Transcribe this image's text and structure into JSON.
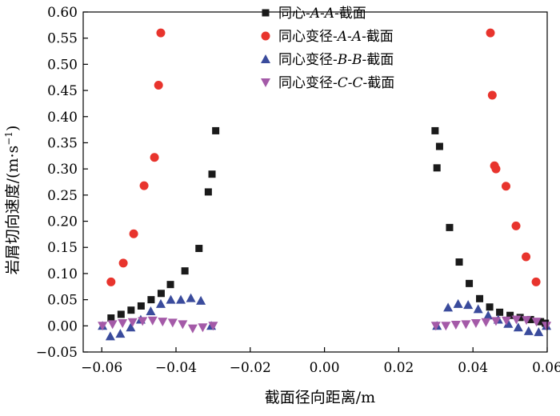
{
  "chart_data": {
    "type": "scatter",
    "xlabel": "截面径向距离/m",
    "ylabel_main": "岩屑切向速度/",
    "ylabel_unit": "(m·s",
    "ylabel_sup": "−1",
    "ylabel_close": ")",
    "xlim": [
      -0.065,
      0.06
    ],
    "ylim": [
      -0.05,
      0.6
    ],
    "xticks": [
      -0.06,
      -0.04,
      -0.02,
      0.0,
      0.02,
      0.04,
      0.06
    ],
    "xtick_labels": [
      "−0.06",
      "−0.04",
      "−0.02",
      "0.00",
      "0.02",
      "0.04",
      "0.06"
    ],
    "yticks": [
      -0.05,
      0.0,
      0.05,
      0.1,
      0.15,
      0.2,
      0.25,
      0.3,
      0.35,
      0.4,
      0.45,
      0.5,
      0.55,
      0.6
    ],
    "ytick_labels": [
      "−0.05",
      "0.00",
      "0.05",
      "0.10",
      "0.15",
      "0.20",
      "0.25",
      "0.30",
      "0.35",
      "0.40",
      "0.45",
      "0.50",
      "0.55",
      "0.60"
    ],
    "grid": false,
    "legend_position": "top-center",
    "series": [
      {
        "name": "同心-A-A-截面",
        "legend_parts": [
          {
            "text": "同心-",
            "italic": false
          },
          {
            "text": "A",
            "italic": true
          },
          {
            "text": "-",
            "italic": false
          },
          {
            "text": "A",
            "italic": true
          },
          {
            "text": "-截面",
            "italic": false
          }
        ],
        "marker": "square",
        "color": "#1a1a1a",
        "points": [
          [
            -0.0575,
            0.015
          ],
          [
            -0.0548,
            0.022
          ],
          [
            -0.0521,
            0.03
          ],
          [
            -0.0494,
            0.038
          ],
          [
            -0.0467,
            0.05
          ],
          [
            -0.044,
            0.062
          ],
          [
            -0.0415,
            0.079
          ],
          [
            -0.0376,
            0.105
          ],
          [
            -0.0338,
            0.148
          ],
          [
            -0.0313,
            0.256
          ],
          [
            -0.0303,
            0.29
          ],
          [
            -0.0293,
            0.373
          ],
          [
            0.0298,
            0.373
          ],
          [
            0.0303,
            0.302
          ],
          [
            0.031,
            0.343
          ],
          [
            0.0337,
            0.188
          ],
          [
            0.0363,
            0.122
          ],
          [
            0.039,
            0.081
          ],
          [
            0.0418,
            0.052
          ],
          [
            0.0445,
            0.036
          ],
          [
            0.0472,
            0.026
          ],
          [
            0.05,
            0.02
          ],
          [
            0.0527,
            0.016
          ],
          [
            0.0555,
            0.012
          ],
          [
            0.0582,
            0.008
          ],
          [
            0.0595,
            0.005
          ]
        ]
      },
      {
        "name": "同心变径-A-A-截面",
        "legend_parts": [
          {
            "text": "同心变径-",
            "italic": false
          },
          {
            "text": "A",
            "italic": true
          },
          {
            "text": "-",
            "italic": false
          },
          {
            "text": "A",
            "italic": true
          },
          {
            "text": "-截面",
            "italic": false
          }
        ],
        "marker": "circle",
        "color": "#e8342d",
        "points": [
          [
            -0.0575,
            0.084
          ],
          [
            -0.0542,
            0.12
          ],
          [
            -0.0514,
            0.176
          ],
          [
            -0.0486,
            0.268
          ],
          [
            -0.0458,
            0.322
          ],
          [
            -0.0447,
            0.46
          ],
          [
            -0.0441,
            0.56
          ],
          [
            0.0447,
            0.56
          ],
          [
            0.0452,
            0.441
          ],
          [
            0.0458,
            0.306
          ],
          [
            0.0462,
            0.3
          ],
          [
            0.0489,
            0.267
          ],
          [
            0.0516,
            0.191
          ],
          [
            0.0543,
            0.132
          ],
          [
            0.057,
            0.084
          ]
        ]
      },
      {
        "name": "同心变径-B-B-截面",
        "legend_parts": [
          {
            "text": "同心变径-",
            "italic": false
          },
          {
            "text": "B",
            "italic": true
          },
          {
            "text": "-",
            "italic": false
          },
          {
            "text": "B",
            "italic": true
          },
          {
            "text": "-截面",
            "italic": false
          }
        ],
        "marker": "triangle-up",
        "color": "#3a4b9c",
        "points": [
          [
            -0.0598,
            0.0
          ],
          [
            -0.0577,
            -0.02
          ],
          [
            -0.055,
            -0.015
          ],
          [
            -0.0522,
            -0.003
          ],
          [
            -0.0495,
            0.012
          ],
          [
            -0.0468,
            0.028
          ],
          [
            -0.0441,
            0.042
          ],
          [
            -0.0414,
            0.05
          ],
          [
            -0.0387,
            0.05
          ],
          [
            -0.036,
            0.053
          ],
          [
            -0.0333,
            0.048
          ],
          [
            -0.0305,
            0.0
          ],
          [
            0.0303,
            0.0
          ],
          [
            0.0333,
            0.035
          ],
          [
            0.036,
            0.042
          ],
          [
            0.0387,
            0.04
          ],
          [
            0.0414,
            0.032
          ],
          [
            0.0441,
            0.02
          ],
          [
            0.0468,
            0.012
          ],
          [
            0.0495,
            0.004
          ],
          [
            0.0522,
            -0.003
          ],
          [
            0.055,
            -0.01
          ],
          [
            0.0577,
            -0.012
          ],
          [
            0.0598,
            0.0
          ]
        ]
      },
      {
        "name": "同心变径-C-C-截面",
        "legend_parts": [
          {
            "text": "同心变径-",
            "italic": false
          },
          {
            "text": "C",
            "italic": true
          },
          {
            "text": "-",
            "italic": false
          },
          {
            "text": "C",
            "italic": true
          },
          {
            "text": "-截面",
            "italic": false
          }
        ],
        "marker": "triangle-down",
        "color": "#a45aa8",
        "points": [
          [
            -0.0598,
            0.0
          ],
          [
            -0.0571,
            0.003
          ],
          [
            -0.0544,
            0.005
          ],
          [
            -0.0517,
            0.007
          ],
          [
            -0.049,
            0.009
          ],
          [
            -0.0463,
            0.01
          ],
          [
            -0.0436,
            0.008
          ],
          [
            -0.0409,
            0.006
          ],
          [
            -0.0382,
            0.003
          ],
          [
            -0.0355,
            -0.005
          ],
          [
            -0.0328,
            -0.003
          ],
          [
            -0.03,
            0.0
          ],
          [
            0.03,
            0.0
          ],
          [
            0.0327,
            0.0
          ],
          [
            0.0354,
            0.002
          ],
          [
            0.0381,
            0.003
          ],
          [
            0.0408,
            0.005
          ],
          [
            0.0435,
            0.007
          ],
          [
            0.0462,
            0.009
          ],
          [
            0.049,
            0.01
          ],
          [
            0.0517,
            0.012
          ],
          [
            0.0544,
            0.011
          ],
          [
            0.0571,
            0.008
          ],
          [
            0.0598,
            0.0
          ]
        ]
      }
    ]
  }
}
